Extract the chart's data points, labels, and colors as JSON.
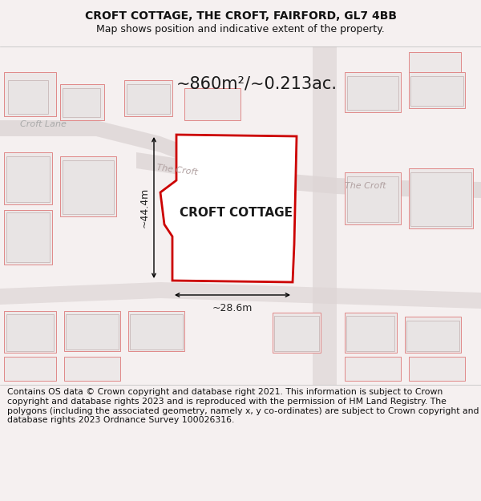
{
  "title": "CROFT COTTAGE, THE CROFT, FAIRFORD, GL7 4BB",
  "subtitle": "Map shows position and indicative extent of the property.",
  "property_label": "CROFT COTTAGE",
  "area_label": "~860m²/~0.213ac.",
  "dim_width_label": "~28.6m",
  "dim_height_label": "~44.4m",
  "road_label_1": "Croft Lane",
  "road_label_2": "The Croft",
  "road_label_3": "The Croft",
  "footer_text": "Contains OS data © Crown copyright and database right 2021. This information is subject to Crown copyright and database rights 2023 and is reproduced with the permission of HM Land Registry. The polygons (including the associated geometry, namely x, y co-ordinates) are subject to Crown copyright and database rights 2023 Ordnance Survey 100026316.",
  "bg_color": "#f5f0f0",
  "map_bg": "#f5f0f0",
  "footer_bg": "#ffffff",
  "property_fill": "#ffffff",
  "property_edge": "#cc0000",
  "bldg_fill": "#e8e4e4",
  "bldg_edge": "#c8b8b8",
  "other_edge": "#e08888",
  "road_fill": "#ddd5d5",
  "title_fontsize": 10,
  "subtitle_fontsize": 9,
  "footer_fontsize": 7.8,
  "area_fontsize": 15,
  "label_fontsize": 11,
  "dim_fontsize": 9
}
